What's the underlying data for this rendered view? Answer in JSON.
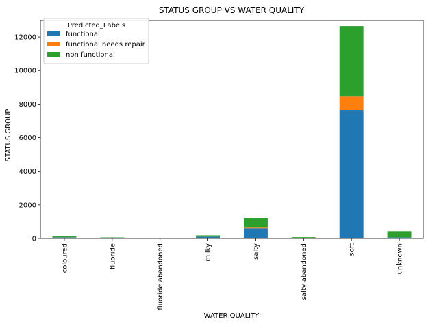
{
  "chart_data": {
    "type": "bar",
    "stacked": true,
    "title": "STATUS GROUP VS WATER QUALITY",
    "xlabel": "WATER QUALITY",
    "ylabel": "STATUS GROUP",
    "categories": [
      "coloured",
      "fluoride",
      "fluoride abandoned",
      "milky",
      "salty",
      "salty abandoned",
      "soft",
      "unknown"
    ],
    "series": [
      {
        "name": "functional",
        "color": "#1f77b4",
        "values": [
          60,
          40,
          2,
          100,
          600,
          30,
          7650,
          60
        ]
      },
      {
        "name": "functional needs repair",
        "color": "#ff7f0e",
        "values": [
          10,
          3,
          0,
          5,
          80,
          5,
          800,
          5
        ]
      },
      {
        "name": "non functional",
        "color": "#2ca02c",
        "values": [
          50,
          20,
          2,
          80,
          540,
          40,
          4200,
          370
        ]
      }
    ],
    "ylim": [
      0,
      12980
    ],
    "yticks": [
      0,
      2000,
      4000,
      6000,
      8000,
      10000,
      12000
    ],
    "legend": {
      "title": "Predicted_Labels",
      "position": "top-left"
    },
    "grid": false
  }
}
